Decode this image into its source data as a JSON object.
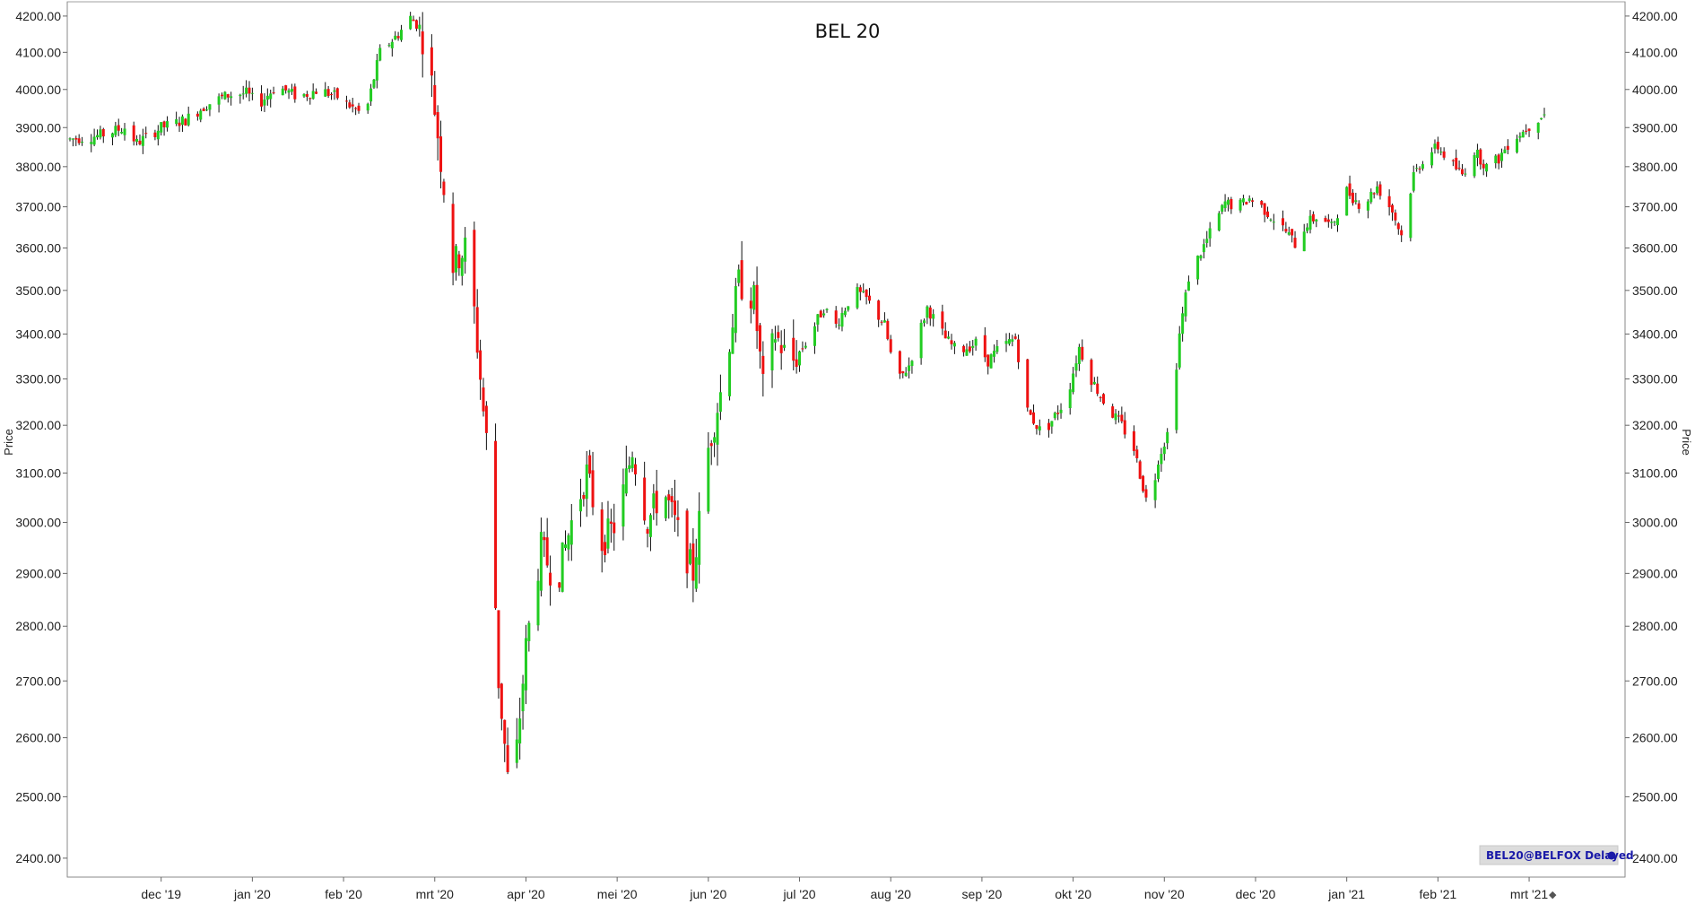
{
  "chart_data": {
    "type": "candlestick",
    "title": "BEL 20",
    "ylabel": "Price",
    "ylabel_right": "Price",
    "scale": "log",
    "ylim": [
      2370,
      4240
    ],
    "y_ticks": [
      "2400.00",
      "2500.00",
      "2600.00",
      "2700.00",
      "2800.00",
      "2900.00",
      "3000.00",
      "3100.00",
      "3200.00",
      "3300.00",
      "3400.00",
      "3500.00",
      "3600.00",
      "3700.00",
      "3800.00",
      "3900.00",
      "4000.00",
      "4100.00",
      "4200.00"
    ],
    "x_tick_labels": [
      "dec '19",
      "jan '20",
      "feb '20",
      "mrt '20",
      "apr '20",
      "mei '20",
      "jun '20",
      "jul '20",
      "aug '20",
      "sep '20",
      "okt '20",
      "nov '20",
      "dec '20",
      "jan '21",
      "feb '21",
      "mrt '21"
    ],
    "x_range_days": [
      0,
      485
    ],
    "x_tick_days": [
      30,
      60,
      90,
      120,
      150,
      180,
      210,
      240,
      270,
      300,
      330,
      360,
      390,
      420,
      450,
      480
    ],
    "series": [
      {
        "up_color": "#22cc22",
        "down_color": "#ee1111",
        "wick_color": "#111111",
        "keypoints": [
          [
            0,
            3870
          ],
          [
            10,
            3880
          ],
          [
            18,
            3900
          ],
          [
            22,
            3860
          ],
          [
            30,
            3900
          ],
          [
            38,
            3920
          ],
          [
            45,
            3960
          ],
          [
            52,
            3985
          ],
          [
            58,
            3990
          ],
          [
            62,
            3960
          ],
          [
            68,
            4010
          ],
          [
            75,
            3980
          ],
          [
            82,
            4000
          ],
          [
            88,
            3980
          ],
          [
            95,
            3940
          ],
          [
            98,
            3960
          ],
          [
            102,
            4100
          ],
          [
            108,
            4150
          ],
          [
            112,
            4195
          ],
          [
            115,
            4170
          ],
          [
            118,
            4080
          ],
          [
            120,
            3950
          ],
          [
            123,
            3750
          ],
          [
            126,
            3560
          ],
          [
            130,
            3600
          ],
          [
            133,
            3450
          ],
          [
            136,
            3230
          ],
          [
            138,
            3110
          ],
          [
            141,
            2700
          ],
          [
            144,
            2530
          ],
          [
            147,
            2580
          ],
          [
            150,
            2760
          ],
          [
            155,
            2950
          ],
          [
            160,
            2880
          ],
          [
            165,
            3000
          ],
          [
            170,
            3100
          ],
          [
            175,
            2960
          ],
          [
            180,
            3000
          ],
          [
            185,
            3150
          ],
          [
            190,
            3000
          ],
          [
            195,
            3070
          ],
          [
            200,
            2980
          ],
          [
            205,
            2900
          ],
          [
            210,
            3150
          ],
          [
            215,
            3300
          ],
          [
            220,
            3520
          ],
          [
            225,
            3480
          ],
          [
            228,
            3280
          ],
          [
            232,
            3400
          ],
          [
            237,
            3330
          ],
          [
            242,
            3380
          ],
          [
            248,
            3460
          ],
          [
            252,
            3420
          ],
          [
            258,
            3500
          ],
          [
            262,
            3480
          ],
          [
            268,
            3420
          ],
          [
            272,
            3290
          ],
          [
            276,
            3330
          ],
          [
            282,
            3460
          ],
          [
            288,
            3390
          ],
          [
            292,
            3360
          ],
          [
            298,
            3380
          ],
          [
            302,
            3340
          ],
          [
            306,
            3370
          ],
          [
            311,
            3390
          ],
          [
            315,
            3230
          ],
          [
            320,
            3180
          ],
          [
            324,
            3220
          ],
          [
            328,
            3260
          ],
          [
            332,
            3370
          ],
          [
            336,
            3300
          ],
          [
            341,
            3240
          ],
          [
            346,
            3200
          ],
          [
            350,
            3150
          ],
          [
            355,
            3020
          ],
          [
            358,
            3130
          ],
          [
            362,
            3200
          ],
          [
            365,
            3400
          ],
          [
            368,
            3530
          ],
          [
            372,
            3590
          ],
          [
            376,
            3650
          ],
          [
            380,
            3710
          ],
          [
            384,
            3700
          ],
          [
            388,
            3720
          ],
          [
            392,
            3700
          ],
          [
            396,
            3670
          ],
          [
            400,
            3640
          ],
          [
            403,
            3610
          ],
          [
            407,
            3660
          ],
          [
            411,
            3680
          ],
          [
            415,
            3650
          ],
          [
            420,
            3740
          ],
          [
            425,
            3700
          ],
          [
            430,
            3750
          ],
          [
            435,
            3690
          ],
          [
            438,
            3630
          ],
          [
            442,
            3780
          ],
          [
            446,
            3830
          ],
          [
            450,
            3850
          ],
          [
            454,
            3810
          ],
          [
            458,
            3780
          ],
          [
            462,
            3840
          ],
          [
            466,
            3800
          ],
          [
            470,
            3820
          ],
          [
            474,
            3870
          ],
          [
            478,
            3890
          ],
          [
            482,
            3920
          ],
          [
            485,
            3935
          ]
        ]
      }
    ],
    "legend_badge": "BEL20@BELFOX Delayed"
  }
}
